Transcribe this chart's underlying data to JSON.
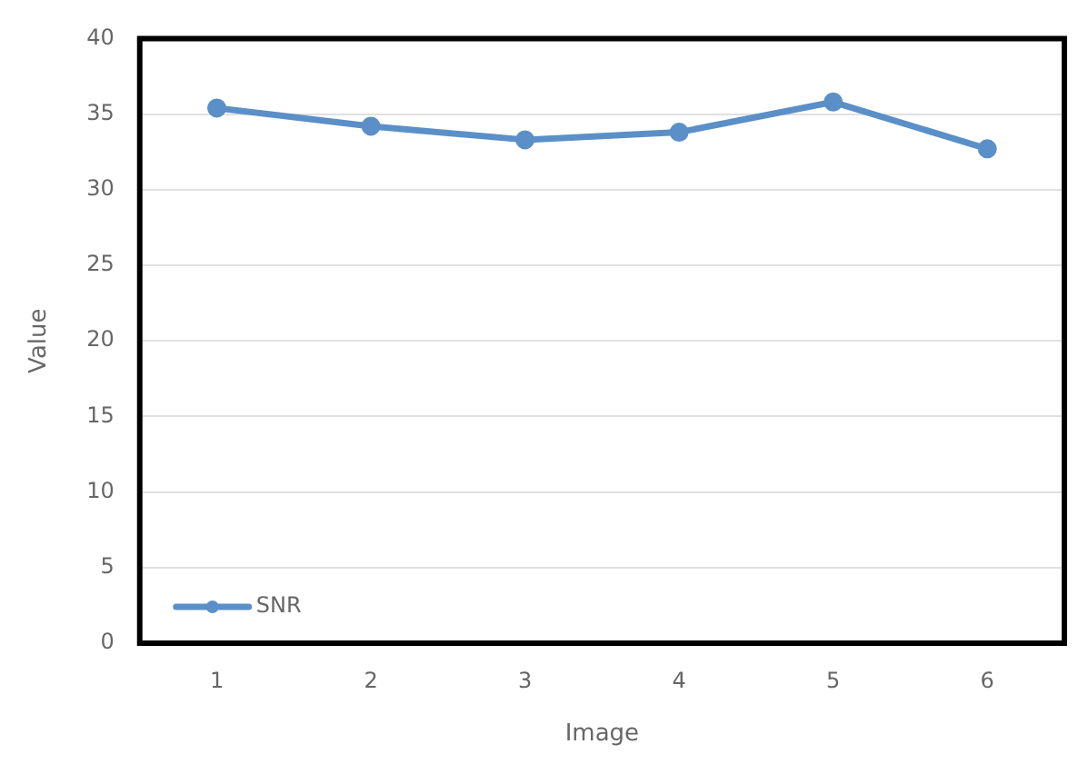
{
  "chart_data": {
    "type": "line",
    "xlabel": "Image",
    "ylabel": "Value",
    "categories": [
      "1",
      "2",
      "3",
      "4",
      "5",
      "6"
    ],
    "series": [
      {
        "name": "SNR",
        "color": "#5b8fc7",
        "values": [
          35.4,
          34.2,
          33.3,
          33.8,
          35.8,
          32.7
        ]
      }
    ],
    "ylim": [
      0,
      40
    ],
    "yticks": [
      0,
      5,
      10,
      15,
      20,
      25,
      30,
      35,
      40
    ],
    "grid": "y",
    "legend": "bottom left",
    "marker": "circle",
    "line_style": "solid"
  }
}
